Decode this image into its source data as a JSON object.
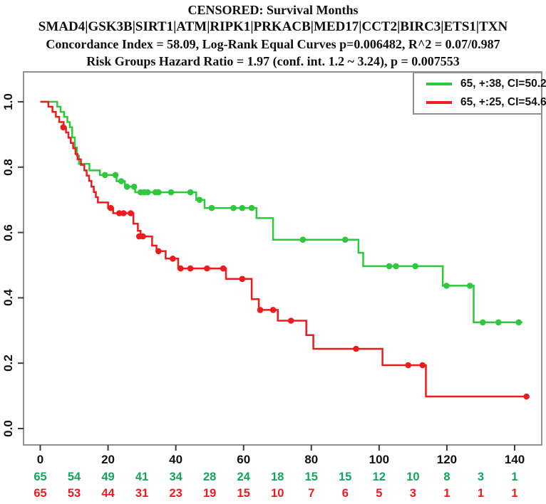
{
  "title": {
    "line1": "CENSORED: Survival Months",
    "line2": "SMAD4|GSK3B|SIRT1|ATM|RIPK1|PRKACB|MED17|CCT2|BIRC3|ETS1|TXN",
    "line3": "Concordance Index = 58.09, Log-Rank Equal Curves p=0.006482, R^2 = 0.07/0.987",
    "line4": "Risk Groups Hazard Ratio = 1.97 (conf. int. 1.2 ~ 3.24), p = 0.007553"
  },
  "colors": {
    "green_curve": "#2dc83c",
    "red_curve": "#ec1b1e",
    "green_text": "#14a55a",
    "red_text": "#ed1b1f",
    "axis_box": "#909090",
    "tick": "#3d3d3d",
    "text": "#111111"
  },
  "legend": {
    "entries": [
      {
        "label": "65, +:38, CI=50.2",
        "color_key": "green_curve"
      },
      {
        "label": "65, +:25, CI=54.6",
        "color_key": "red_curve"
      }
    ]
  },
  "chart_data": {
    "type": "line",
    "subtype": "kaplan-meier-step",
    "title": "CENSORED: Survival Months",
    "xlabel": "",
    "ylabel": "",
    "xlim": [
      -5,
      148
    ],
    "ylim": [
      0,
      1.05
    ],
    "grid": false,
    "legend_position": "top-right",
    "x_ticks": [
      0,
      20,
      40,
      60,
      80,
      100,
      120,
      140
    ],
    "y_ticks": [
      0.0,
      0.2,
      0.4,
      0.6,
      0.8,
      1.0
    ],
    "series": [
      {
        "name": "green-risk-group",
        "legend_label": "65, +:38, CI=50.2",
        "color_key": "green_curve",
        "n": 65,
        "censored": 38,
        "ci": 50.2,
        "end_time": 142.3,
        "steps": [
          [
            0,
            1.0
          ],
          [
            5,
            0.985
          ],
          [
            6,
            0.969
          ],
          [
            7,
            0.954
          ],
          [
            8,
            0.938
          ],
          [
            8.7,
            0.922
          ],
          [
            9.4,
            0.891
          ],
          [
            10.2,
            0.86
          ],
          [
            10.8,
            0.835
          ],
          [
            11.4,
            0.81
          ],
          [
            14.5,
            0.79
          ],
          [
            17.6,
            0.776
          ],
          [
            22.5,
            0.757
          ],
          [
            25,
            0.74
          ],
          [
            28,
            0.723
          ],
          [
            46,
            0.7
          ],
          [
            48.5,
            0.675
          ],
          [
            63.8,
            0.644
          ],
          [
            68.7,
            0.578
          ],
          [
            93.9,
            0.538
          ],
          [
            95.3,
            0.497
          ],
          [
            118.8,
            0.437
          ],
          [
            127.9,
            0.325
          ]
        ],
        "censor_marks": [
          [
            19.1,
            0.776
          ],
          [
            22.2,
            0.776
          ],
          [
            23.9,
            0.757
          ],
          [
            25.6,
            0.74
          ],
          [
            27.7,
            0.74
          ],
          [
            29.6,
            0.723
          ],
          [
            30.7,
            0.723
          ],
          [
            31.7,
            0.723
          ],
          [
            34,
            0.723
          ],
          [
            34.9,
            0.723
          ],
          [
            38.6,
            0.723
          ],
          [
            44.3,
            0.723
          ],
          [
            47,
            0.7
          ],
          [
            50.6,
            0.675
          ],
          [
            57,
            0.675
          ],
          [
            59.6,
            0.675
          ],
          [
            62.4,
            0.675
          ],
          [
            77.5,
            0.578
          ],
          [
            90,
            0.578
          ],
          [
            103,
            0.497
          ],
          [
            105,
            0.497
          ],
          [
            110.7,
            0.497
          ],
          [
            119.9,
            0.437
          ],
          [
            126.8,
            0.437
          ],
          [
            130.6,
            0.325
          ],
          [
            135.2,
            0.325
          ],
          [
            141.2,
            0.325
          ]
        ]
      },
      {
        "name": "red-risk-group",
        "legend_label": "65, +:25, CI=54.6",
        "color_key": "red_curve",
        "n": 65,
        "censored": 25,
        "ci": 54.6,
        "end_time": 143.5,
        "steps": [
          [
            0,
            1.0
          ],
          [
            2.4,
            0.985
          ],
          [
            3.6,
            0.969
          ],
          [
            4.6,
            0.954
          ],
          [
            5.6,
            0.938
          ],
          [
            6.9,
            0.922
          ],
          [
            7.6,
            0.906
          ],
          [
            8.3,
            0.89
          ],
          [
            9,
            0.874
          ],
          [
            9.7,
            0.858
          ],
          [
            10.4,
            0.84
          ],
          [
            11,
            0.824
          ],
          [
            12,
            0.807
          ],
          [
            13,
            0.79
          ],
          [
            13.7,
            0.774
          ],
          [
            14.4,
            0.758
          ],
          [
            15.1,
            0.74
          ],
          [
            15.8,
            0.724
          ],
          [
            16.4,
            0.708
          ],
          [
            17,
            0.692
          ],
          [
            20,
            0.675
          ],
          [
            21.5,
            0.659
          ],
          [
            27.5,
            0.627
          ],
          [
            28.8,
            0.605
          ],
          [
            29.6,
            0.588
          ],
          [
            33,
            0.56
          ],
          [
            34.3,
            0.543
          ],
          [
            37,
            0.52
          ],
          [
            40.7,
            0.49
          ],
          [
            54.8,
            0.458
          ],
          [
            62.4,
            0.396
          ],
          [
            64.5,
            0.363
          ],
          [
            70.1,
            0.33
          ],
          [
            78.5,
            0.286
          ],
          [
            80.6,
            0.244
          ],
          [
            101,
            0.194
          ],
          [
            113.8,
            0.098
          ]
        ],
        "censor_marks": [
          [
            6.8,
            0.922
          ],
          [
            20.8,
            0.675
          ],
          [
            23.3,
            0.659
          ],
          [
            24.6,
            0.659
          ],
          [
            26.7,
            0.659
          ],
          [
            29.2,
            0.588
          ],
          [
            30.3,
            0.588
          ],
          [
            34.9,
            0.543
          ],
          [
            39.1,
            0.52
          ],
          [
            41.4,
            0.49
          ],
          [
            44.3,
            0.49
          ],
          [
            49.2,
            0.49
          ],
          [
            54,
            0.49
          ],
          [
            59.6,
            0.458
          ],
          [
            64.9,
            0.363
          ],
          [
            68.7,
            0.363
          ],
          [
            74,
            0.33
          ],
          [
            93.2,
            0.244
          ],
          [
            108.6,
            0.194
          ],
          [
            112.8,
            0.194
          ],
          [
            143.5,
            0.098
          ]
        ]
      }
    ],
    "risk_table": {
      "times": [
        0,
        10,
        20,
        30,
        40,
        50,
        60,
        70,
        80,
        90,
        100,
        110,
        120,
        130,
        140
      ],
      "rows": [
        {
          "name": "green-at-risk",
          "color_key": "green_text",
          "counts": [
            65,
            54,
            49,
            41,
            34,
            28,
            24,
            18,
            15,
            15,
            12,
            10,
            8,
            3,
            1
          ]
        },
        {
          "name": "red-at-risk",
          "color_key": "red_text",
          "counts": [
            65,
            53,
            44,
            31,
            23,
            19,
            15,
            10,
            7,
            6,
            5,
            3,
            1,
            1,
            1
          ]
        }
      ]
    }
  }
}
